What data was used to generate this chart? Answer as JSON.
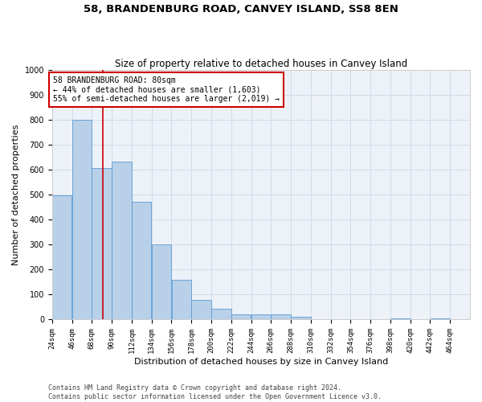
{
  "title": "58, BRANDENBURG ROAD, CANVEY ISLAND, SS8 8EN",
  "subtitle": "Size of property relative to detached houses in Canvey Island",
  "xlabel": "Distribution of detached houses by size in Canvey Island",
  "ylabel": "Number of detached properties",
  "bin_starts": [
    24,
    46,
    68,
    90,
    112,
    134,
    156,
    178,
    200,
    222,
    244,
    266,
    288,
    310,
    332,
    354,
    376,
    398,
    420,
    442
  ],
  "bin_width": 22,
  "bar_heights": [
    498,
    800,
    608,
    633,
    473,
    302,
    158,
    80,
    45,
    22,
    20,
    20,
    10,
    0,
    0,
    0,
    0,
    5,
    0,
    5
  ],
  "bar_color": "#b8d0e8",
  "bar_edge_color": "#5b9bd5",
  "grid_color": "#d0dce8",
  "background_color": "#edf2f8",
  "vline_x": 80,
  "vline_color": "#cc0000",
  "annotation_text": "58 BRANDENBURG ROAD: 80sqm\n← 44% of detached houses are smaller (1,603)\n55% of semi-detached houses are larger (2,019) →",
  "annotation_box_color": "#ffffff",
  "annotation_box_edge": "#cc0000",
  "ylim": [
    0,
    1000
  ],
  "yticks": [
    0,
    100,
    200,
    300,
    400,
    500,
    600,
    700,
    800,
    900,
    1000
  ],
  "tick_labels": [
    "24sqm",
    "46sqm",
    "68sqm",
    "90sqm",
    "112sqm",
    "134sqm",
    "156sqm",
    "178sqm",
    "200sqm",
    "222sqm",
    "244sqm",
    "266sqm",
    "288sqm",
    "310sqm",
    "332sqm",
    "354sqm",
    "376sqm",
    "398sqm",
    "420sqm",
    "442sqm",
    "464sqm"
  ],
  "footer": "Contains HM Land Registry data © Crown copyright and database right 2024.\nContains public sector information licensed under the Open Government Licence v3.0.",
  "title_fontsize": 9.5,
  "subtitle_fontsize": 8.5,
  "tick_fontsize": 6.5,
  "ylabel_fontsize": 8,
  "xlabel_fontsize": 8,
  "footer_fontsize": 6,
  "annotation_fontsize": 7
}
